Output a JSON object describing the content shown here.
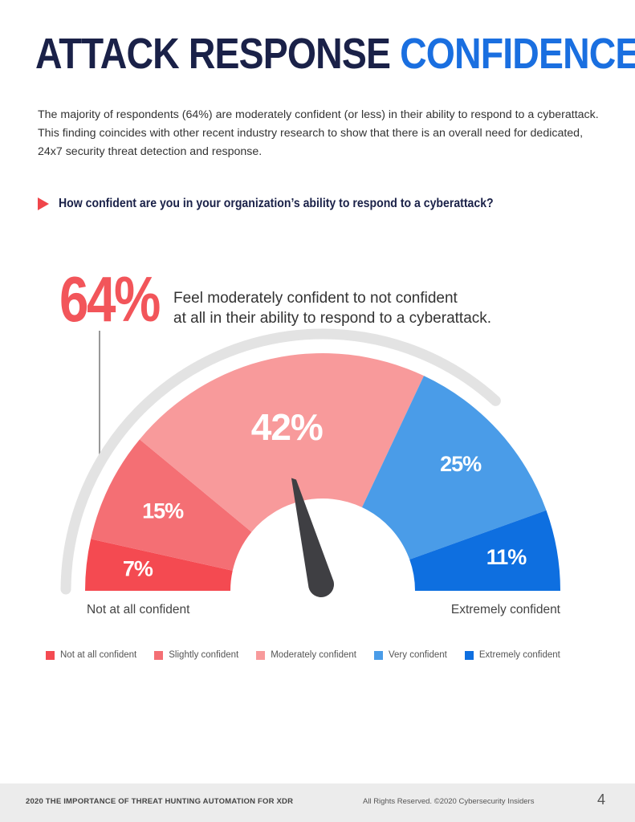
{
  "header": {
    "title_part1": "ATTACK RESPONSE ",
    "title_part2": "CONFIDENCE",
    "title_color": "#1a2148",
    "accent_color": "#1a6fe0"
  },
  "intro": "The majority of respondents (64%) are moderately confident (or less) in their ability to respond to a cyberattack. This finding coincides with other recent industry research to show that there is an overall need for dedicated, 24x7 security threat detection and response.",
  "question": "How confident are you in your organization’s ability to respond to a cyberattack?",
  "highlight": {
    "percent": "64%",
    "line1": "Feel moderately confident to not confident",
    "line2": "at all in their ability to respond to a cyberattack."
  },
  "chart_data": {
    "type": "pie",
    "style": "semicircle-gauge",
    "categories": [
      "Not at all confident",
      "Slightly confident",
      "Moderately confident",
      "Very confident",
      "Extremely confident"
    ],
    "values": [
      7,
      15,
      42,
      25,
      11
    ],
    "labels": [
      "7%",
      "15%",
      "42%",
      "25%",
      "11%"
    ],
    "colors": [
      "#f44a51",
      "#f46f74",
      "#f89a9b",
      "#4a9ce8",
      "#0e6fe0"
    ],
    "end_label_left": "Not at all confident",
    "end_label_right": "Extremely confident",
    "legend_position": "bottom"
  },
  "footer": {
    "left": "2020 THE IMPORTANCE OF THREAT HUNTING AUTOMATION FOR XDR",
    "right": "All Rights Reserved.  ©2020 Cybersecurity Insiders",
    "page": "4"
  }
}
